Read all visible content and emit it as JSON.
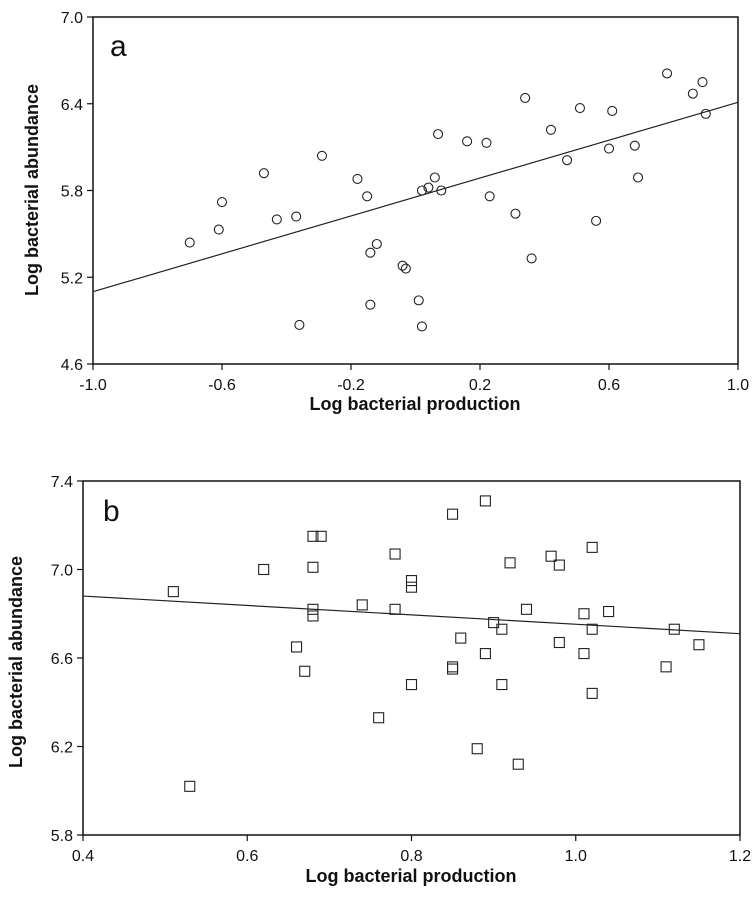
{
  "chart_data": [
    {
      "type": "scatter",
      "panel_label": "a",
      "xlabel": "Log bacterial production",
      "ylabel": "Log bacterial abundance",
      "xlim": [
        -1.0,
        1.0
      ],
      "ylim": [
        4.6,
        7.0
      ],
      "xticks": [
        -1.0,
        -0.6,
        -0.2,
        0.2,
        0.6,
        1.0
      ],
      "yticks": [
        4.6,
        5.2,
        5.8,
        6.4,
        7.0
      ],
      "xtick_labels": [
        "-1.0",
        "-0.6",
        "-0.2",
        "0.2",
        "0.6",
        "1.0"
      ],
      "ytick_labels": [
        "4.6",
        "5.2",
        "5.8",
        "6.4",
        "7.0"
      ],
      "grid": false,
      "marker": "circle",
      "fit_line": {
        "x": [
          -1.0,
          1.0
        ],
        "y": [
          5.1,
          6.41
        ]
      },
      "points": [
        {
          "x": -0.7,
          "y": 5.44
        },
        {
          "x": -0.61,
          "y": 5.53
        },
        {
          "x": -0.6,
          "y": 5.72
        },
        {
          "x": -0.47,
          "y": 5.92
        },
        {
          "x": -0.43,
          "y": 5.6
        },
        {
          "x": -0.37,
          "y": 5.62
        },
        {
          "x": -0.29,
          "y": 6.04
        },
        {
          "x": -0.18,
          "y": 5.88
        },
        {
          "x": -0.15,
          "y": 5.76
        },
        {
          "x": -0.14,
          "y": 5.37
        },
        {
          "x": -0.14,
          "y": 5.01
        },
        {
          "x": -0.12,
          "y": 5.43
        },
        {
          "x": -0.04,
          "y": 5.28
        },
        {
          "x": -0.03,
          "y": 5.26
        },
        {
          "x": 0.01,
          "y": 5.04
        },
        {
          "x": 0.02,
          "y": 4.86
        },
        {
          "x": 0.02,
          "y": 5.8
        },
        {
          "x": 0.04,
          "y": 5.82
        },
        {
          "x": 0.06,
          "y": 5.89
        },
        {
          "x": 0.07,
          "y": 6.19
        },
        {
          "x": 0.08,
          "y": 5.8
        },
        {
          "x": 0.16,
          "y": 6.14
        },
        {
          "x": 0.22,
          "y": 6.13
        },
        {
          "x": 0.23,
          "y": 5.76
        },
        {
          "x": 0.31,
          "y": 5.64
        },
        {
          "x": 0.34,
          "y": 6.44
        },
        {
          "x": 0.36,
          "y": 5.33
        },
        {
          "x": 0.42,
          "y": 6.22
        },
        {
          "x": 0.47,
          "y": 6.01
        },
        {
          "x": 0.51,
          "y": 6.37
        },
        {
          "x": 0.56,
          "y": 5.59
        },
        {
          "x": 0.6,
          "y": 6.09
        },
        {
          "x": 0.61,
          "y": 6.35
        },
        {
          "x": 0.68,
          "y": 6.11
        },
        {
          "x": 0.69,
          "y": 5.89
        },
        {
          "x": 0.78,
          "y": 6.61
        },
        {
          "x": 0.86,
          "y": 6.47
        },
        {
          "x": 0.89,
          "y": 6.55
        },
        {
          "x": 0.9,
          "y": 6.33
        },
        {
          "x": -0.36,
          "y": 4.87
        }
      ]
    },
    {
      "type": "scatter",
      "panel_label": "b",
      "xlabel": "Log bacterial production",
      "ylabel": "Log bacterial abundance",
      "xlim": [
        0.4,
        1.2
      ],
      "ylim": [
        5.8,
        7.4
      ],
      "xticks": [
        0.4,
        0.6,
        0.8,
        1.0,
        1.2
      ],
      "yticks": [
        5.8,
        6.2,
        6.6,
        7.0,
        7.4
      ],
      "xtick_labels": [
        "0.4",
        "0.6",
        "0.8",
        "1.0",
        "1.2"
      ],
      "ytick_labels": [
        "5.8",
        "6.2",
        "6.6",
        "7.0",
        "7.4"
      ],
      "grid": false,
      "marker": "square",
      "fit_line": {
        "x": [
          0.4,
          1.2
        ],
        "y": [
          6.88,
          6.71
        ]
      },
      "points": [
        {
          "x": 0.51,
          "y": 6.9
        },
        {
          "x": 0.53,
          "y": 6.02
        },
        {
          "x": 0.62,
          "y": 7.0
        },
        {
          "x": 0.66,
          "y": 6.65
        },
        {
          "x": 0.67,
          "y": 6.54
        },
        {
          "x": 0.68,
          "y": 7.15
        },
        {
          "x": 0.68,
          "y": 6.82
        },
        {
          "x": 0.68,
          "y": 6.79
        },
        {
          "x": 0.68,
          "y": 7.01
        },
        {
          "x": 0.69,
          "y": 7.15
        },
        {
          "x": 0.74,
          "y": 6.84
        },
        {
          "x": 0.76,
          "y": 6.33
        },
        {
          "x": 0.78,
          "y": 7.07
        },
        {
          "x": 0.78,
          "y": 6.82
        },
        {
          "x": 0.8,
          "y": 6.95
        },
        {
          "x": 0.8,
          "y": 6.92
        },
        {
          "x": 0.8,
          "y": 6.48
        },
        {
          "x": 0.85,
          "y": 7.25
        },
        {
          "x": 0.85,
          "y": 6.56
        },
        {
          "x": 0.85,
          "y": 6.55
        },
        {
          "x": 0.86,
          "y": 6.69
        },
        {
          "x": 0.88,
          "y": 6.19
        },
        {
          "x": 0.89,
          "y": 6.62
        },
        {
          "x": 0.89,
          "y": 7.31
        },
        {
          "x": 0.9,
          "y": 6.76
        },
        {
          "x": 0.91,
          "y": 6.73
        },
        {
          "x": 0.91,
          "y": 6.48
        },
        {
          "x": 0.92,
          "y": 7.03
        },
        {
          "x": 0.93,
          "y": 6.12
        },
        {
          "x": 0.94,
          "y": 6.82
        },
        {
          "x": 0.97,
          "y": 7.06
        },
        {
          "x": 0.98,
          "y": 6.67
        },
        {
          "x": 0.98,
          "y": 7.02
        },
        {
          "x": 1.01,
          "y": 6.62
        },
        {
          "x": 1.01,
          "y": 6.8
        },
        {
          "x": 1.02,
          "y": 6.73
        },
        {
          "x": 1.02,
          "y": 7.1
        },
        {
          "x": 1.02,
          "y": 6.44
        },
        {
          "x": 1.04,
          "y": 6.81
        },
        {
          "x": 1.11,
          "y": 6.56
        },
        {
          "x": 1.12,
          "y": 6.73
        },
        {
          "x": 1.15,
          "y": 6.66
        }
      ]
    }
  ]
}
